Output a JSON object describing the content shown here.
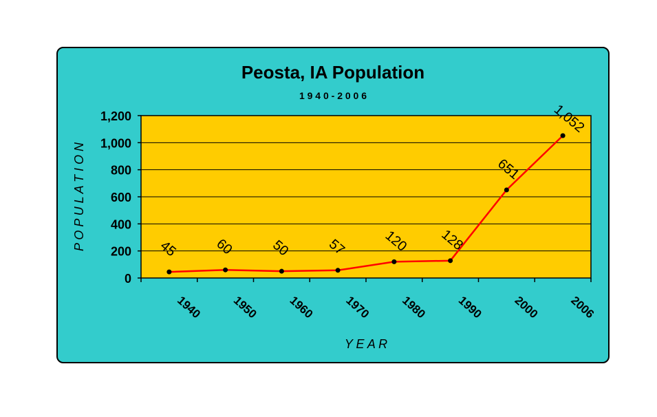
{
  "colors": {
    "panel": "#33cccc",
    "plot_area": "#ffcc00",
    "line": "#ff0000",
    "marker": "#000000"
  },
  "chart_data": {
    "type": "line",
    "title": "Peosta, IA Population",
    "subtitle": "1 9 4 0 - 2 0 0 6",
    "xlabel": "Y E A R",
    "ylabel": "P O P U L A T I O N",
    "categories": [
      "1940",
      "1950",
      "1960",
      "1970",
      "1980",
      "1990",
      "2000",
      "2006"
    ],
    "series": [
      {
        "values": [
          45,
          60,
          50,
          57,
          120,
          128,
          651,
          1052
        ]
      }
    ],
    "data_labels": [
      "45",
      "60",
      "50",
      "57",
      "120",
      "128",
      "651",
      "1,052"
    ],
    "yticks": [
      "0",
      "200",
      "400",
      "600",
      "800",
      "1,000",
      "1,200"
    ],
    "ylim": [
      0,
      1200
    ],
    "grid": true,
    "legend": "none"
  }
}
